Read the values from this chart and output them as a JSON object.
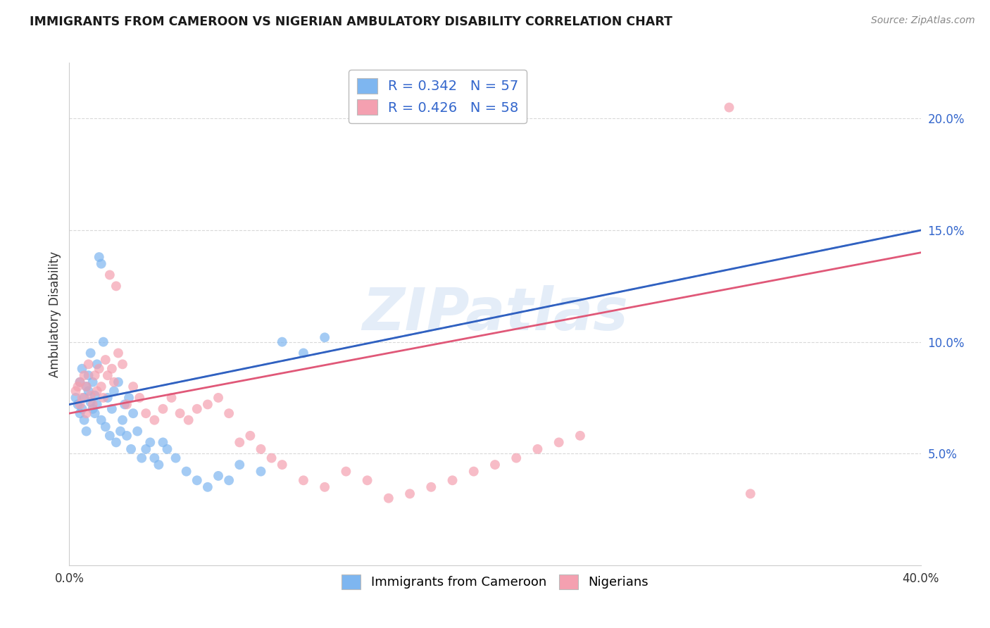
{
  "title": "IMMIGRANTS FROM CAMEROON VS NIGERIAN AMBULATORY DISABILITY CORRELATION CHART",
  "source": "Source: ZipAtlas.com",
  "ylabel": "Ambulatory Disability",
  "y_ticks": [
    0.05,
    0.1,
    0.15,
    0.2
  ],
  "y_tick_labels": [
    "5.0%",
    "10.0%",
    "15.0%",
    "20.0%"
  ],
  "x_ticks": [
    0.0,
    0.4
  ],
  "x_tick_labels": [
    "0.0%",
    "40.0%"
  ],
  "x_range": [
    0.0,
    0.4
  ],
  "y_range": [
    0.0,
    0.225
  ],
  "watermark": "ZIPatlas",
  "background_color": "#ffffff",
  "grid_color": "#d0d0d0",
  "blue_scatter_color": "#7EB6F0",
  "pink_scatter_color": "#F4A0B0",
  "blue_line_color": "#3060C0",
  "pink_line_color": "#E05878",
  "blue_dashed_color": "#A0C8F0",
  "legend_R_N_color": "#3366CC",
  "cameroon_points_x": [
    0.003,
    0.004,
    0.005,
    0.005,
    0.006,
    0.006,
    0.007,
    0.007,
    0.008,
    0.008,
    0.009,
    0.009,
    0.01,
    0.01,
    0.011,
    0.011,
    0.012,
    0.012,
    0.013,
    0.013,
    0.014,
    0.015,
    0.015,
    0.016,
    0.017,
    0.018,
    0.019,
    0.02,
    0.021,
    0.022,
    0.023,
    0.024,
    0.025,
    0.026,
    0.027,
    0.028,
    0.029,
    0.03,
    0.032,
    0.034,
    0.036,
    0.038,
    0.04,
    0.042,
    0.044,
    0.046,
    0.05,
    0.055,
    0.06,
    0.065,
    0.07,
    0.075,
    0.08,
    0.09,
    0.1,
    0.11,
    0.12
  ],
  "cameroon_points_y": [
    0.075,
    0.072,
    0.068,
    0.082,
    0.07,
    0.088,
    0.075,
    0.065,
    0.08,
    0.06,
    0.078,
    0.085,
    0.073,
    0.095,
    0.07,
    0.082,
    0.076,
    0.068,
    0.072,
    0.09,
    0.138,
    0.135,
    0.065,
    0.1,
    0.062,
    0.075,
    0.058,
    0.07,
    0.078,
    0.055,
    0.082,
    0.06,
    0.065,
    0.072,
    0.058,
    0.075,
    0.052,
    0.068,
    0.06,
    0.048,
    0.052,
    0.055,
    0.048,
    0.045,
    0.055,
    0.052,
    0.048,
    0.042,
    0.038,
    0.035,
    0.04,
    0.038,
    0.045,
    0.042,
    0.1,
    0.095,
    0.102
  ],
  "nigerian_points_x": [
    0.003,
    0.004,
    0.005,
    0.005,
    0.006,
    0.007,
    0.008,
    0.008,
    0.009,
    0.01,
    0.011,
    0.012,
    0.013,
    0.014,
    0.015,
    0.016,
    0.017,
    0.018,
    0.019,
    0.02,
    0.021,
    0.022,
    0.023,
    0.025,
    0.027,
    0.03,
    0.033,
    0.036,
    0.04,
    0.044,
    0.048,
    0.052,
    0.056,
    0.06,
    0.065,
    0.07,
    0.075,
    0.08,
    0.085,
    0.09,
    0.095,
    0.1,
    0.11,
    0.12,
    0.13,
    0.14,
    0.15,
    0.16,
    0.17,
    0.18,
    0.19,
    0.2,
    0.21,
    0.22,
    0.23,
    0.24,
    0.31,
    0.32
  ],
  "nigerian_points_y": [
    0.078,
    0.08,
    0.082,
    0.072,
    0.075,
    0.085,
    0.08,
    0.068,
    0.09,
    0.076,
    0.072,
    0.085,
    0.078,
    0.088,
    0.08,
    0.075,
    0.092,
    0.085,
    0.13,
    0.088,
    0.082,
    0.125,
    0.095,
    0.09,
    0.072,
    0.08,
    0.075,
    0.068,
    0.065,
    0.07,
    0.075,
    0.068,
    0.065,
    0.07,
    0.072,
    0.075,
    0.068,
    0.055,
    0.058,
    0.052,
    0.048,
    0.045,
    0.038,
    0.035,
    0.042,
    0.038,
    0.03,
    0.032,
    0.035,
    0.038,
    0.042,
    0.045,
    0.048,
    0.052,
    0.055,
    0.058,
    0.205,
    0.032
  ],
  "cam_line_x0": 0.0,
  "cam_line_x1": 0.4,
  "cam_line_y0": 0.072,
  "cam_line_y1": 0.15,
  "nig_line_x0": 0.0,
  "nig_line_x1": 0.4,
  "nig_line_y0": 0.068,
  "nig_line_y1": 0.14
}
